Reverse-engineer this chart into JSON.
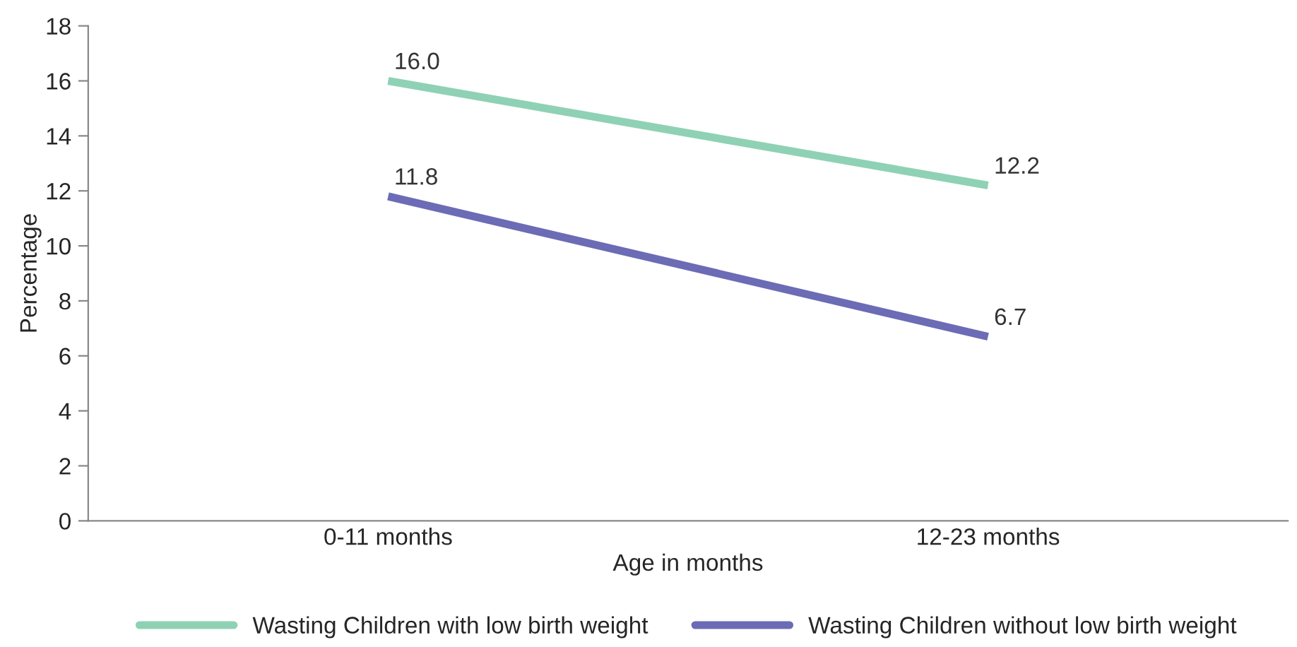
{
  "chart_data": {
    "type": "line",
    "categories": [
      "0-11 months",
      "12-23 months"
    ],
    "xlabel": "Age in months",
    "ylabel": "Percentage",
    "ylim": [
      0,
      18
    ],
    "yticks": [
      0,
      2,
      4,
      6,
      8,
      10,
      12,
      14,
      16,
      18
    ],
    "series": [
      {
        "name": "Wasting Children with low birth weight",
        "color": "#8fd1b4",
        "values": [
          16.0,
          12.2
        ],
        "value_labels": [
          "16.0",
          "12.2"
        ]
      },
      {
        "name": "Wasting Children without low birth weight",
        "color": "#6c6bb5",
        "values": [
          11.8,
          6.7
        ],
        "value_labels": [
          "11.8",
          "6.7"
        ]
      }
    ],
    "legend": "bottom",
    "grid": false,
    "marker": "none",
    "line_style": "solid"
  }
}
